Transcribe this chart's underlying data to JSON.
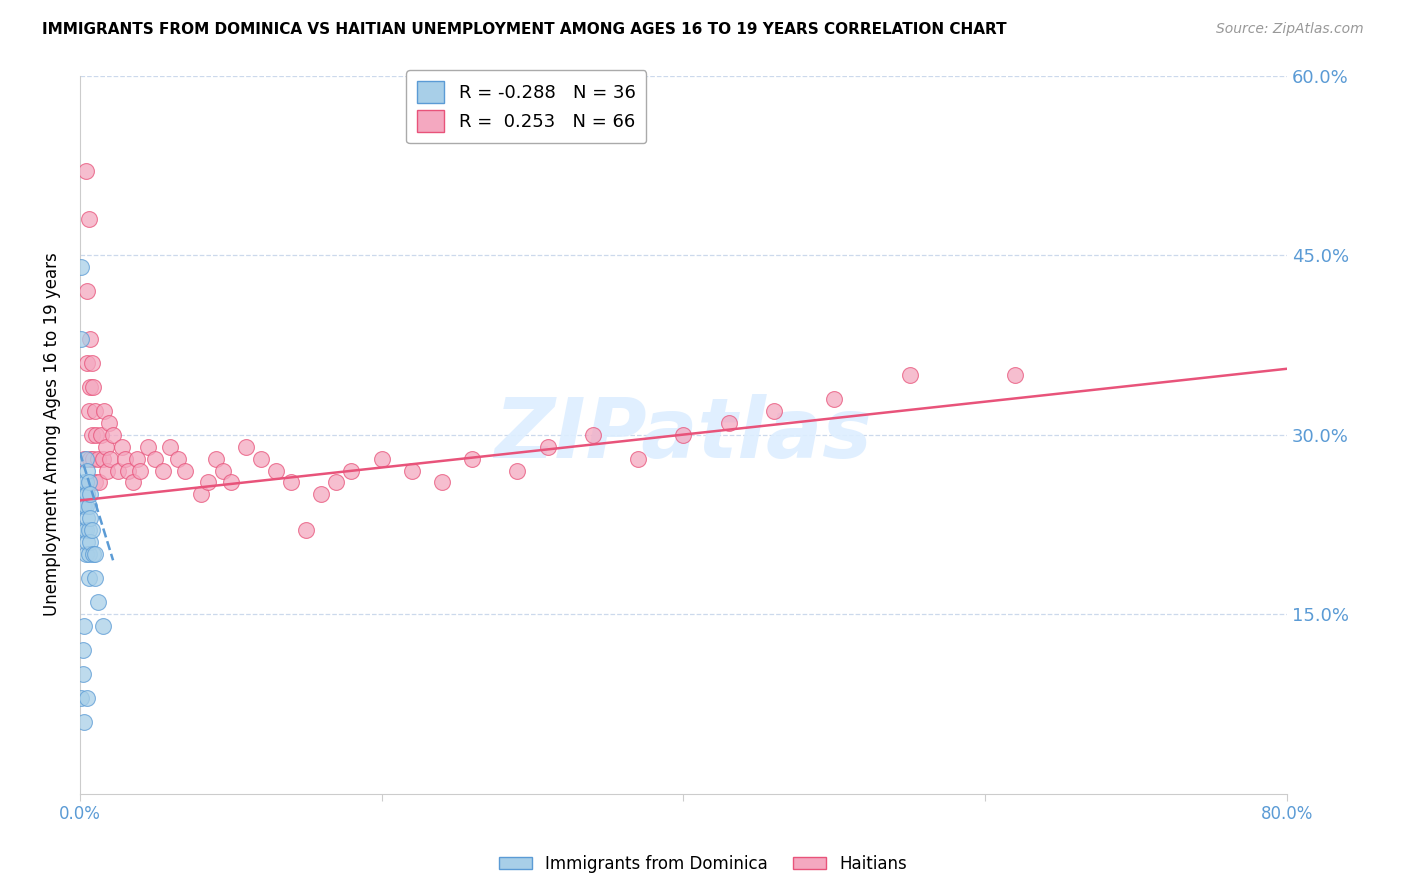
{
  "title": "IMMIGRANTS FROM DOMINICA VS HAITIAN UNEMPLOYMENT AMONG AGES 16 TO 19 YEARS CORRELATION CHART",
  "source": "Source: ZipAtlas.com",
  "ylabel": "Unemployment Among Ages 16 to 19 years",
  "legend_label1": "R = -0.288   N = 36",
  "legend_label2": "R =  0.253   N = 66",
  "legend_group1": "Immigrants from Dominica",
  "legend_group2": "Haitians",
  "color_blue": "#a8cfe8",
  "color_pink": "#f4a8c0",
  "color_blue_line": "#5b9bd5",
  "color_pink_line": "#e8537a",
  "watermark_color": "#ddeeff",
  "xlim": [
    0.0,
    0.8
  ],
  "ylim": [
    0.0,
    0.6
  ],
  "xticks_shown": [
    0.0,
    0.8
  ],
  "xtick_labels_shown": [
    "0.0%",
    "80.0%"
  ],
  "xticks_minor": [
    0.2,
    0.4,
    0.6
  ],
  "yticks": [
    0.15,
    0.3,
    0.45,
    0.6
  ],
  "ytick_labels": [
    "15.0%",
    "30.0%",
    "45.0%",
    "60.0%"
  ],
  "dominica_x": [
    0.001,
    0.001,
    0.001,
    0.002,
    0.002,
    0.002,
    0.002,
    0.003,
    0.003,
    0.003,
    0.003,
    0.003,
    0.004,
    0.004,
    0.004,
    0.004,
    0.004,
    0.005,
    0.005,
    0.005,
    0.005,
    0.005,
    0.006,
    0.006,
    0.006,
    0.006,
    0.006,
    0.007,
    0.007,
    0.007,
    0.008,
    0.009,
    0.01,
    0.01,
    0.012,
    0.015
  ],
  "dominica_y": [
    0.44,
    0.38,
    0.08,
    0.25,
    0.24,
    0.12,
    0.1,
    0.26,
    0.24,
    0.22,
    0.14,
    0.06,
    0.28,
    0.26,
    0.24,
    0.22,
    0.2,
    0.27,
    0.25,
    0.23,
    0.21,
    0.08,
    0.26,
    0.24,
    0.22,
    0.2,
    0.18,
    0.25,
    0.23,
    0.21,
    0.22,
    0.2,
    0.2,
    0.18,
    0.16,
    0.14
  ],
  "haitian_x": [
    0.003,
    0.004,
    0.005,
    0.005,
    0.006,
    0.006,
    0.007,
    0.007,
    0.007,
    0.008,
    0.008,
    0.009,
    0.009,
    0.01,
    0.01,
    0.011,
    0.012,
    0.013,
    0.014,
    0.015,
    0.016,
    0.017,
    0.018,
    0.019,
    0.02,
    0.022,
    0.025,
    0.028,
    0.03,
    0.032,
    0.035,
    0.038,
    0.04,
    0.045,
    0.05,
    0.055,
    0.06,
    0.065,
    0.07,
    0.08,
    0.085,
    0.09,
    0.095,
    0.1,
    0.11,
    0.12,
    0.13,
    0.14,
    0.15,
    0.16,
    0.17,
    0.18,
    0.2,
    0.22,
    0.24,
    0.26,
    0.29,
    0.31,
    0.34,
    0.37,
    0.4,
    0.43,
    0.46,
    0.5,
    0.55,
    0.62
  ],
  "haitian_y": [
    0.28,
    0.52,
    0.42,
    0.36,
    0.48,
    0.32,
    0.38,
    0.34,
    0.28,
    0.36,
    0.3,
    0.34,
    0.28,
    0.32,
    0.26,
    0.3,
    0.28,
    0.26,
    0.3,
    0.28,
    0.32,
    0.29,
    0.27,
    0.31,
    0.28,
    0.3,
    0.27,
    0.29,
    0.28,
    0.27,
    0.26,
    0.28,
    0.27,
    0.29,
    0.28,
    0.27,
    0.29,
    0.28,
    0.27,
    0.25,
    0.26,
    0.28,
    0.27,
    0.26,
    0.29,
    0.28,
    0.27,
    0.26,
    0.22,
    0.25,
    0.26,
    0.27,
    0.28,
    0.27,
    0.26,
    0.28,
    0.27,
    0.29,
    0.3,
    0.28,
    0.3,
    0.31,
    0.32,
    0.33,
    0.35,
    0.35
  ],
  "pink_line_x": [
    0.0,
    0.8
  ],
  "pink_line_y": [
    0.245,
    0.355
  ],
  "blue_line_x": [
    0.0,
    0.022
  ],
  "blue_line_y": [
    0.285,
    0.195
  ]
}
